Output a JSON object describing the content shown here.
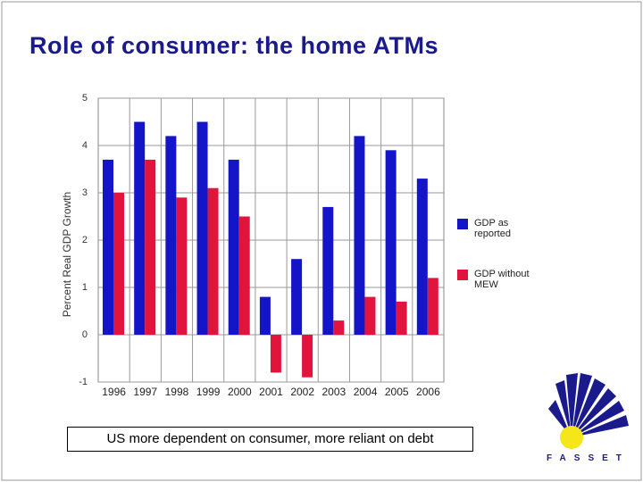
{
  "title": "Role of consumer: the home ATMs",
  "caption": "US more dependent on consumer, more reliant on debt",
  "logo": "FASSET",
  "chart_data": {
    "type": "bar",
    "ylabel": "Percent Real GDP Growth",
    "categories": [
      "1996",
      "1997",
      "1998",
      "1999",
      "2000",
      "2001",
      "2002",
      "2003",
      "2004",
      "2005",
      "2006"
    ],
    "series": [
      {
        "name": "GDP as reported",
        "color": "#1414c8",
        "values": [
          3.7,
          4.5,
          4.2,
          4.5,
          3.7,
          0.8,
          1.6,
          2.7,
          4.2,
          3.9,
          3.3
        ]
      },
      {
        "name": "GDP without MEW",
        "color": "#e0143c",
        "values": [
          3.0,
          3.7,
          2.9,
          3.1,
          2.5,
          -0.8,
          -0.9,
          0.3,
          0.8,
          0.7,
          1.2
        ]
      }
    ],
    "ylim": [
      -1,
      5
    ],
    "yticks": [
      -1,
      0,
      1,
      2,
      3,
      4,
      5
    ],
    "grid": true,
    "legend": "right"
  }
}
